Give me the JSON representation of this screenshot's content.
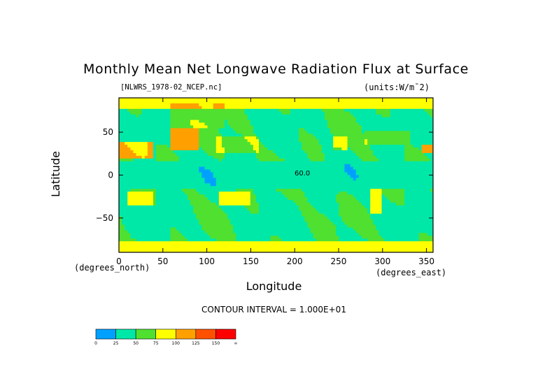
{
  "chart_data": {
    "type": "heatmap",
    "title": "Monthly Mean Net Longwave Radiation Flux at Surface",
    "file_label": "[NLWRS_1978-02_NCEP.nc]",
    "units_label": "(units:W/m¯2)",
    "xlabel": "Longitude",
    "ylabel": "Latitude",
    "x_units": "(degrees_east)",
    "y_units": "(degrees_north)",
    "xlim": [
      0,
      357.5
    ],
    "ylim": [
      -90,
      90
    ],
    "x_ticks": [
      0,
      50,
      100,
      150,
      200,
      250,
      300,
      350
    ],
    "y_ticks": [
      50,
      0,
      -50
    ],
    "y_tick_labels": [
      "50",
      "0",
      "−50"
    ],
    "contour_interval_label": "CONTOUR INTERVAL = 1.000E+01",
    "colorbar": {
      "labels": [
        "0",
        "25",
        "50",
        "75",
        "100",
        "125",
        "150",
        "∞"
      ],
      "colors": [
        "#00a0ff",
        "#00e8a8",
        "#50e030",
        "#ffff00",
        "#ffa000",
        "#ff5000",
        "#ff0000"
      ]
    },
    "annotations": [
      "60.0"
    ]
  }
}
